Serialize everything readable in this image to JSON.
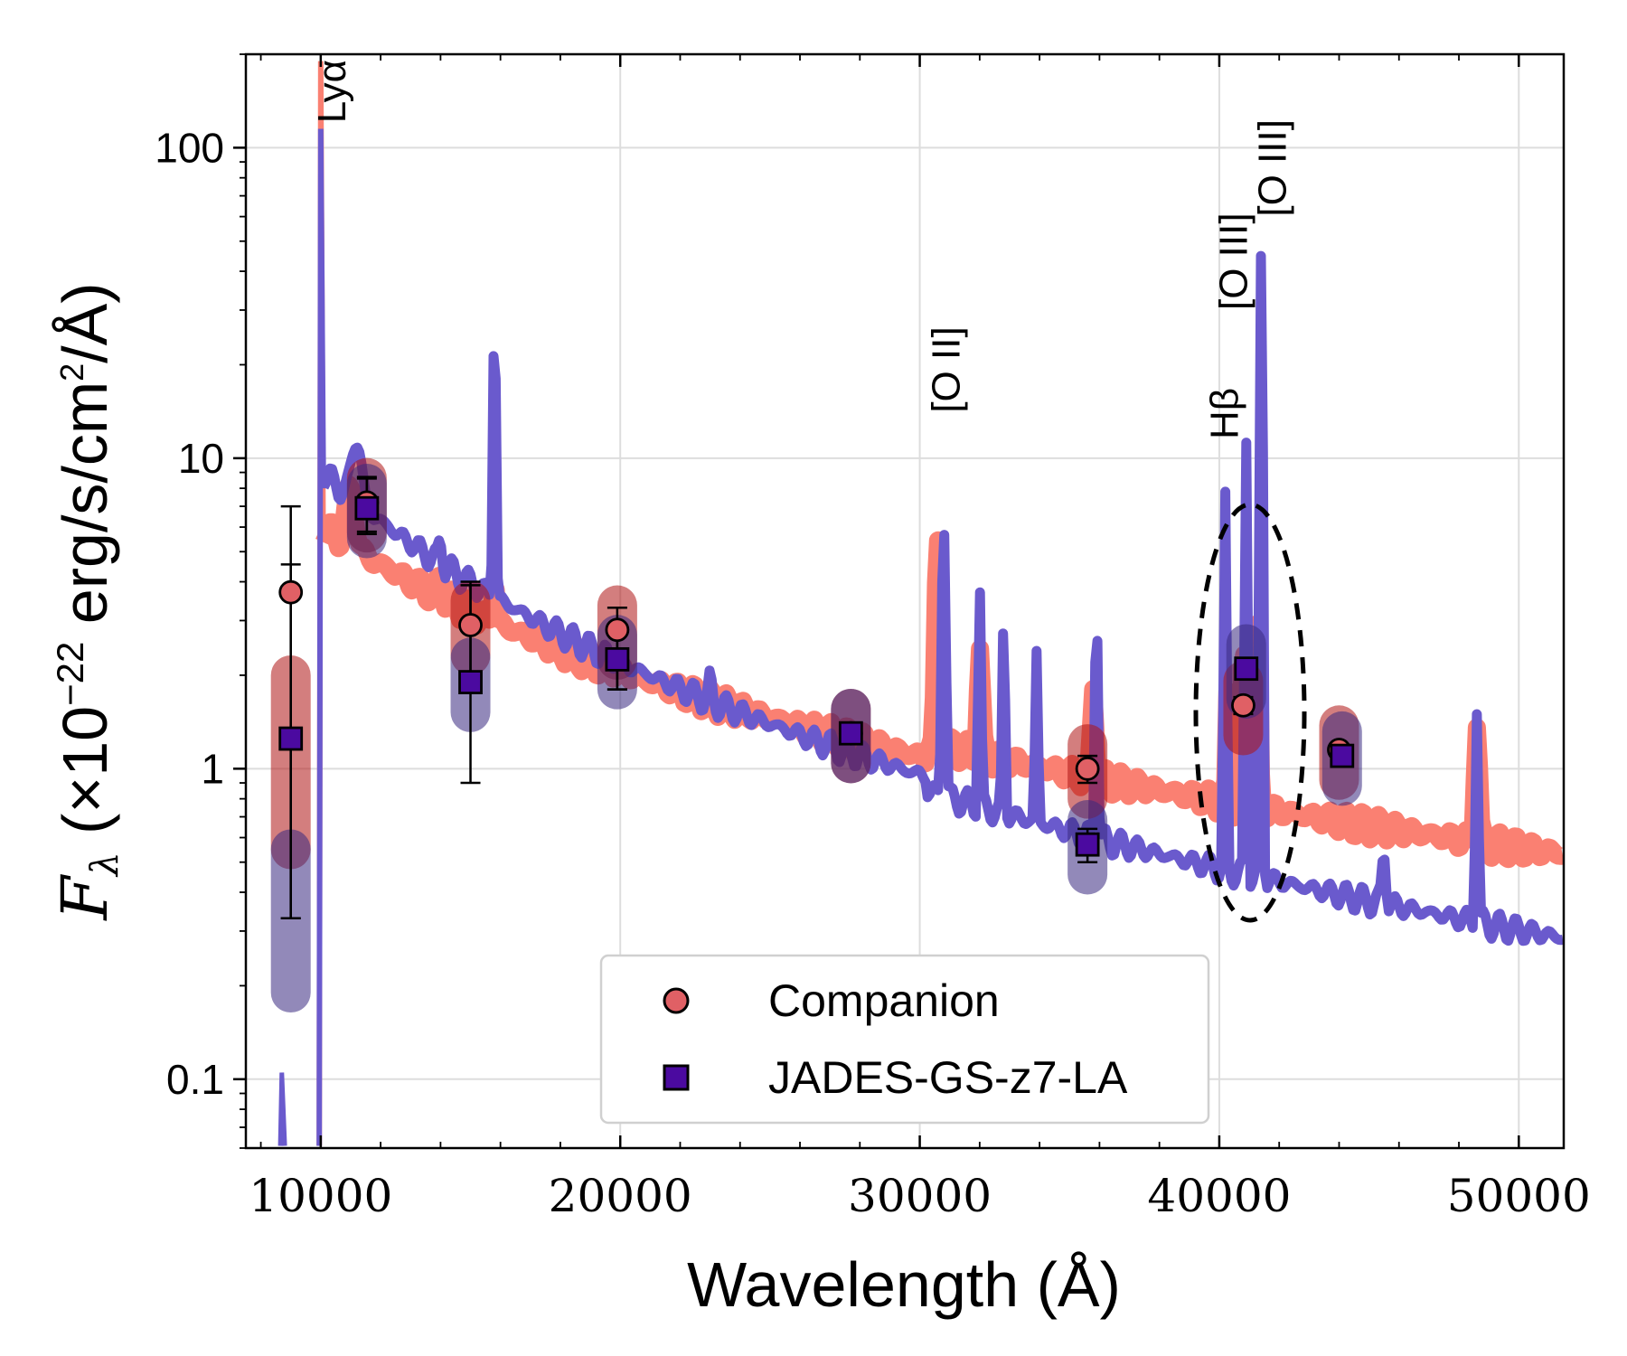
{
  "chart_data": {
    "type": "scatter",
    "xlabel": "Wavelength (Å)",
    "ylabel_prefix": "F",
    "ylabel_sub": "λ",
    "ylabel_mid": " (×10",
    "ylabel_exp": "−22",
    "ylabel_units_a": " erg/s/cm",
    "ylabel_units_sq": "2",
    "ylabel_units_b": "/Å)",
    "xlim": [
      7500,
      51500
    ],
    "ylim": [
      0.06,
      200
    ],
    "y_scale": "log",
    "grid": true,
    "x_ticks": [
      10000,
      20000,
      30000,
      40000,
      50000
    ],
    "x_tick_labels": [
      "10000",
      "20000",
      "30000",
      "40000",
      "50000"
    ],
    "y_ticks": [
      0.1,
      1,
      10,
      100
    ],
    "y_tick_labels": [
      "0.1",
      "1",
      "10",
      "100"
    ],
    "legend_position": "bottom-center",
    "series": [
      {
        "name": "Companion",
        "marker": "circle",
        "color": "#e06065",
        "model_color": "#fa8072",
        "x": [
          9000,
          11540,
          15000,
          19900,
          27700,
          35600,
          40800,
          44000
        ],
        "y": [
          3.7,
          7.2,
          2.9,
          2.8,
          1.3,
          1.0,
          1.6,
          1.15
        ],
        "y_err_low": [
          3.37,
          1.4,
          1.0,
          1.0,
          0.1,
          0.1,
          0.1,
          0.05
        ],
        "y_err_high": [
          3.3,
          1.4,
          1.0,
          0.5,
          0.1,
          0.1,
          0.1,
          0.05
        ]
      },
      {
        "name": "JADES-GS-z7-LA",
        "marker": "square",
        "color": "#4b0aa0",
        "model_color": "#6a5acd",
        "x": [
          9000,
          11540,
          15000,
          19900,
          27700,
          35600,
          40900,
          44100
        ],
        "y": [
          1.25,
          6.9,
          1.9,
          2.25,
          1.3,
          0.57,
          2.1,
          1.1
        ],
        "y_err_low": [
          0.92,
          1.2,
          1.0,
          0.45,
          0.1,
          0.07,
          0.1,
          0.05
        ],
        "y_err_high": [
          3.3,
          1.8,
          2.1,
          0.5,
          0.1,
          0.07,
          0.1,
          0.05
        ]
      }
    ],
    "line_annotations": [
      {
        "label": "Lyα",
        "wavelength": 10400,
        "y": 120
      },
      {
        "label": "[O II]",
        "wavelength": 30900,
        "y": 14
      },
      {
        "label": "Hβ",
        "wavelength": 40200,
        "y": 11.5
      },
      {
        "label": "[O III]",
        "wavelength": 40500,
        "y": 30
      },
      {
        "label": "[O III]",
        "wavelength": 41800,
        "y": 60
      }
    ]
  }
}
